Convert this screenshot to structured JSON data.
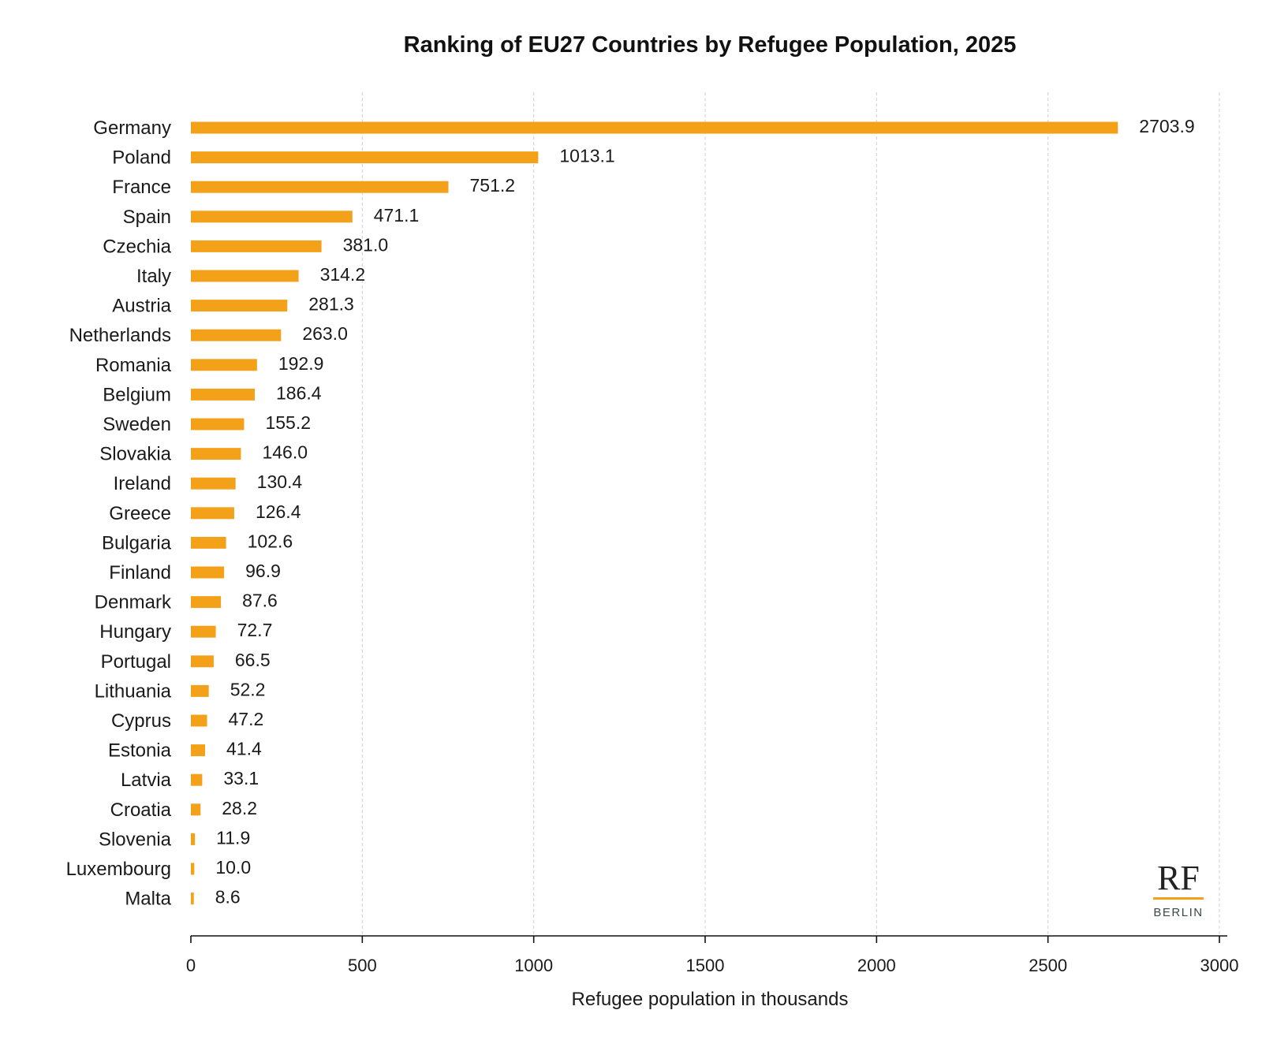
{
  "colors": {
    "bar": "#f4a11a",
    "logo_rule": "#f4a11a"
  },
  "logo": {
    "mark": "RF",
    "city": "BERLIN"
  },
  "chart_data": {
    "type": "bar",
    "orientation": "horizontal",
    "title": "Ranking of EU27 Countries by Refugee Population, 2025",
    "xlabel": "Refugee population in thousands",
    "ylabel": "",
    "xlim": [
      0,
      3000
    ],
    "xticks": [
      0,
      500,
      1000,
      1500,
      2000,
      2500,
      3000
    ],
    "grid": "vertical dashed",
    "categories": [
      "Germany",
      "Poland",
      "France",
      "Spain",
      "Czechia",
      "Italy",
      "Austria",
      "Netherlands",
      "Romania",
      "Belgium",
      "Sweden",
      "Slovakia",
      "Ireland",
      "Greece",
      "Bulgaria",
      "Finland",
      "Denmark",
      "Hungary",
      "Portugal",
      "Lithuania",
      "Cyprus",
      "Estonia",
      "Latvia",
      "Croatia",
      "Slovenia",
      "Luxembourg",
      "Malta"
    ],
    "values": [
      2703.9,
      1013.1,
      751.2,
      471.1,
      381.0,
      314.2,
      281.3,
      263.0,
      192.9,
      186.4,
      155.2,
      146.0,
      130.4,
      126.4,
      102.6,
      96.9,
      87.6,
      72.7,
      66.5,
      52.2,
      47.2,
      41.4,
      33.1,
      28.2,
      11.9,
      10.0,
      8.6
    ],
    "value_labels": [
      "2703.9",
      "1013.1",
      "751.2",
      "471.1",
      "381.0",
      "314.2",
      "281.3",
      "263.0",
      "192.9",
      "186.4",
      "155.2",
      "146.0",
      "130.4",
      "126.4",
      "102.6",
      "96.9",
      "87.6",
      "72.7",
      "66.5",
      "52.2",
      "47.2",
      "41.4",
      "33.1",
      "28.2",
      "11.9",
      "10.0",
      "8.6"
    ]
  }
}
